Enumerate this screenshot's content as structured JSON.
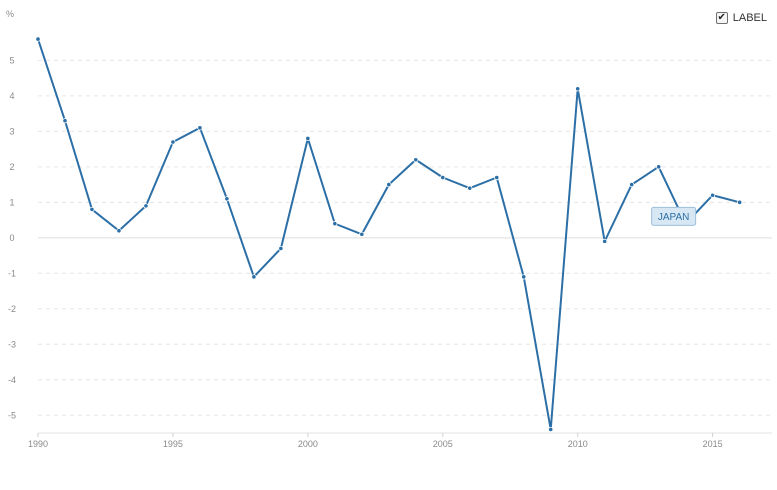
{
  "legend": {
    "label": "LABEL",
    "checked": true
  },
  "chart_data": {
    "type": "line",
    "unit": "%",
    "x": [
      1990,
      1991,
      1992,
      1993,
      1994,
      1995,
      1996,
      1997,
      1998,
      1999,
      2000,
      2001,
      2002,
      2003,
      2004,
      2005,
      2006,
      2007,
      2008,
      2009,
      2010,
      2011,
      2012,
      2013,
      2014,
      2015,
      2016
    ],
    "series": [
      {
        "name": "JAPAN",
        "color": "#2c6fa6",
        "values": [
          5.6,
          3.3,
          0.8,
          0.2,
          0.9,
          2.7,
          3.1,
          1.1,
          -1.1,
          -0.3,
          2.8,
          0.4,
          0.1,
          1.5,
          2.2,
          1.7,
          1.4,
          1.7,
          -1.1,
          -5.4,
          4.2,
          -0.1,
          1.5,
          2.0,
          0.4,
          1.2,
          1.0
        ]
      }
    ],
    "x_ticks": [
      1990,
      1995,
      2000,
      2005,
      2010,
      2015
    ],
    "y_ticks": [
      -5,
      -4,
      -3,
      -2,
      -1,
      0,
      1,
      2,
      3,
      4,
      5
    ],
    "xlim": [
      1990,
      2017.2
    ],
    "ylim": [
      -5.5,
      5.8
    ],
    "grid": true,
    "legend_position": "top-right"
  }
}
